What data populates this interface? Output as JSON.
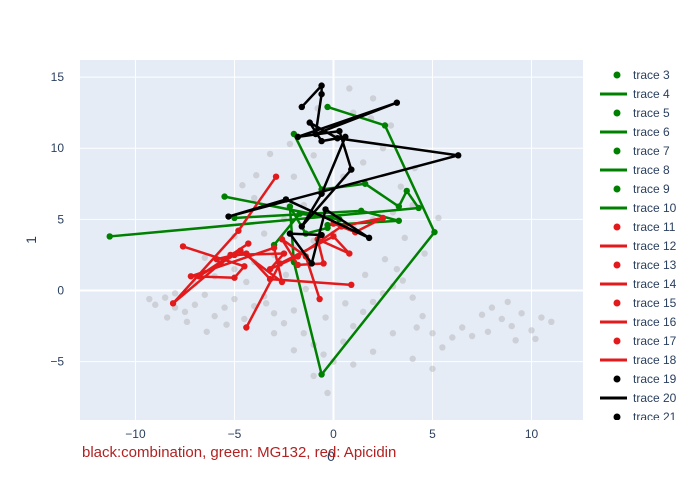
{
  "chart_data": {
    "type": "scatter",
    "xlabel": "0",
    "ylabel": "1",
    "xlim": [
      -12.8,
      12.6
    ],
    "ylim": [
      -9.1,
      16.2
    ],
    "xticks": [
      -10,
      -5,
      0,
      5,
      10
    ],
    "yticks": [
      -5,
      0,
      5,
      10,
      15
    ],
    "xtick_labels": [
      "−10",
      "−5",
      "0",
      "5",
      "10"
    ],
    "ytick_labels": [
      "−5",
      "0",
      "5",
      "10",
      "15"
    ],
    "grid": true,
    "legend_position": "right",
    "annotation": "black:combination, green: MG132, red: Apicidin",
    "colors": {
      "green": "#008000",
      "red": "#e31a1c",
      "black": "#000000",
      "background_points": "#b0b0b0",
      "plot_bg": "#e5ecf6"
    },
    "background_points": [
      [
        -9,
        -1
      ],
      [
        -8.5,
        -0.5
      ],
      [
        -8,
        -1.2
      ],
      [
        -7.5,
        -1.5
      ],
      [
        -7,
        -1
      ],
      [
        -6.5,
        -0.3
      ],
      [
        -6,
        -1.8
      ],
      [
        -5.5,
        -1.2
      ],
      [
        -5,
        -0.6
      ],
      [
        -4.5,
        -2
      ],
      [
        -4,
        -1.1
      ],
      [
        -3.5,
        -0.4
      ],
      [
        -3,
        -1.6
      ],
      [
        -2.5,
        -2.3
      ],
      [
        -2,
        -1.4
      ],
      [
        -1.5,
        -3
      ],
      [
        -1,
        -3.8
      ],
      [
        -0.5,
        -4.5
      ],
      [
        0,
        -5
      ],
      [
        0.5,
        -3.6
      ],
      [
        1,
        -2.5
      ],
      [
        1.5,
        -1.5
      ],
      [
        2,
        -0.8
      ],
      [
        2.5,
        -0.2
      ],
      [
        3,
        0.3
      ],
      [
        3.5,
        0.7
      ],
      [
        4,
        -0.5
      ],
      [
        4.5,
        -1.8
      ],
      [
        5,
        -3
      ],
      [
        5.5,
        -4
      ],
      [
        6,
        -3.3
      ],
      [
        6.5,
        -2.6
      ],
      [
        7,
        -3.2
      ],
      [
        7.5,
        -1.7
      ],
      [
        8,
        -1.2
      ],
      [
        8.5,
        -2
      ],
      [
        9,
        -2.5
      ],
      [
        9.5,
        -1.6
      ],
      [
        10,
        -2.8
      ],
      [
        10.5,
        -1.9
      ],
      [
        11,
        -2.2
      ],
      [
        9.2,
        -3.5
      ],
      [
        8.8,
        -0.8
      ],
      [
        10.2,
        -3.4
      ],
      [
        7.8,
        -2.9
      ],
      [
        -6,
        1
      ],
      [
        -5,
        1.5
      ],
      [
        -4,
        2
      ],
      [
        -3,
        2.5
      ],
      [
        -2,
        3
      ],
      [
        -1,
        3.5
      ],
      [
        0,
        4
      ],
      [
        1,
        4.5
      ],
      [
        2,
        5
      ],
      [
        3,
        5.5
      ],
      [
        4,
        6
      ],
      [
        -3.5,
        4
      ],
      [
        -2.5,
        5
      ],
      [
        -1.5,
        6
      ],
      [
        -0.5,
        7
      ],
      [
        0.5,
        8
      ],
      [
        1.5,
        9
      ],
      [
        2.5,
        10
      ],
      [
        -2,
        8
      ],
      [
        -1,
        9.5
      ],
      [
        0,
        11
      ],
      [
        1,
        12.5
      ],
      [
        2,
        13.5
      ],
      [
        0.8,
        14.2
      ],
      [
        -4,
        6.5
      ],
      [
        -5,
        3.8
      ],
      [
        -6.5,
        2.3
      ],
      [
        -7,
        0.5
      ],
      [
        -8,
        -0.2
      ],
      [
        -3,
        -3
      ],
      [
        -2,
        -4.2
      ],
      [
        -1,
        -6
      ],
      [
        -0.3,
        -7.2
      ],
      [
        1,
        -5.2
      ],
      [
        2,
        -4.3
      ],
      [
        3,
        -3
      ],
      [
        4,
        -4.8
      ],
      [
        5,
        -5.5
      ],
      [
        4.2,
        -2.6
      ],
      [
        3.2,
        1.5
      ],
      [
        4.6,
        2.6
      ],
      [
        3.6,
        3.7
      ],
      [
        2.6,
        2.2
      ],
      [
        1.6,
        1.1
      ],
      [
        0.6,
        -0.9
      ],
      [
        -0.4,
        -1.9
      ],
      [
        -1.4,
        0.1
      ],
      [
        -2.4,
        1.1
      ],
      [
        -3.4,
        -0.9
      ],
      [
        -4.4,
        0.6
      ],
      [
        -5.4,
        -2.4
      ],
      [
        -6.4,
        -2.9
      ],
      [
        -7.4,
        -2.2
      ],
      [
        -8.4,
        -1.9
      ],
      [
        -9.3,
        -0.6
      ],
      [
        3.4,
        7.3
      ],
      [
        4.1,
        8.6
      ],
      [
        2.9,
        11.6
      ],
      [
        1.9,
        12.1
      ],
      [
        -0.8,
        12.8
      ],
      [
        -3.2,
        9.6
      ],
      [
        -3.9,
        8.1
      ],
      [
        -4.6,
        7.4
      ],
      [
        -2.2,
        10.3
      ],
      [
        5.3,
        5.1
      ]
    ],
    "series": [
      {
        "name": "trace 3",
        "mode": "markers",
        "color": "#008000",
        "x": [],
        "y": []
      },
      {
        "name": "trace 4",
        "mode": "lines",
        "color": "#008000",
        "x": [
          -5.5,
          0.3,
          -1.7,
          -3.0
        ],
        "y": [
          6.6,
          5.0,
          5.4,
          3.2
        ]
      },
      {
        "name": "trace 5",
        "mode": "markers",
        "color": "#008000",
        "x": [],
        "y": []
      },
      {
        "name": "trace 6",
        "mode": "lines",
        "color": "#008000",
        "x": [
          -2.0,
          -0.6,
          1.6,
          3.3,
          3.7,
          4.3,
          -11.3
        ],
        "y": [
          11.0,
          7.1,
          7.5,
          5.9,
          7.0,
          5.8,
          3.8
        ]
      },
      {
        "name": "trace 7",
        "mode": "markers",
        "color": "#008000",
        "x": [],
        "y": []
      },
      {
        "name": "trace 8",
        "mode": "lines",
        "color": "#008000",
        "x": [
          -0.3,
          2.6,
          5.1,
          -0.6,
          -2.0,
          -2.2,
          -1.4,
          -0.3
        ],
        "y": [
          12.9,
          11.6,
          4.1,
          -5.9,
          2.0,
          5.9,
          4.0,
          4.4
        ]
      },
      {
        "name": "trace 9",
        "mode": "markers",
        "color": "#008000",
        "x": [],
        "y": []
      },
      {
        "name": "trace 10",
        "mode": "lines",
        "color": "#008000",
        "x": [
          -5.0,
          1.4,
          3.3,
          -0.3
        ],
        "y": [
          5.1,
          5.6,
          4.9,
          4.6
        ]
      },
      {
        "name": "trace 11",
        "mode": "markers",
        "color": "#e31a1c",
        "x": [],
        "y": []
      },
      {
        "name": "trace 12",
        "mode": "lines",
        "color": "#e31a1c",
        "x": [
          -4.3,
          -6.8,
          -4.7,
          -2.6,
          -3.0,
          -7.2,
          -5.0,
          -4.5,
          -7.6
        ],
        "y": [
          3.3,
          1.0,
          2.8,
          0.6,
          3.0,
          1.0,
          0.9,
          1.7,
          3.1
        ]
      },
      {
        "name": "trace 13",
        "mode": "markers",
        "color": "#e31a1c",
        "x": [],
        "y": []
      },
      {
        "name": "trace 14",
        "mode": "lines",
        "color": "#e31a1c",
        "x": [
          -2.9,
          -4.8,
          -8.1,
          -5.7,
          -5.0,
          -5.9,
          -4.4,
          -3.2,
          0.9
        ],
        "y": [
          8.0,
          4.2,
          -0.9,
          1.9,
          2.5,
          2.2,
          2.6,
          0.8,
          0.4
        ]
      },
      {
        "name": "trace 15",
        "mode": "markers",
        "color": "#e31a1c",
        "x": [],
        "y": []
      },
      {
        "name": "trace 16",
        "mode": "lines",
        "color": "#e31a1c",
        "x": [
          -4.4,
          -2.7,
          0.0,
          0.8,
          -0.8,
          -0.5,
          -1.8,
          -2.6,
          -1.4,
          -0.7
        ],
        "y": [
          -2.6,
          1.9,
          3.8,
          2.6,
          3.6,
          1.9,
          1.8,
          3.6,
          2.4,
          -0.6
        ]
      },
      {
        "name": "trace 17",
        "mode": "markers",
        "color": "#e31a1c",
        "x": [],
        "y": []
      },
      {
        "name": "trace 18",
        "mode": "lines",
        "color": "#e31a1c",
        "x": [
          0.0,
          1.1,
          1.1,
          2.5,
          0.4,
          -1.8,
          -3.2,
          -2.5,
          -5.2
        ],
        "y": [
          4.7,
          4.1,
          4.1,
          5.1,
          4.5,
          2.4,
          1.5,
          2.6,
          2.5
        ]
      },
      {
        "name": "trace 19",
        "mode": "markers",
        "color": "#000000",
        "x": [],
        "y": []
      },
      {
        "name": "trace 20",
        "mode": "lines",
        "color": "#000000",
        "x": [
          -1.6,
          -0.6,
          -0.6,
          -0.9,
          3.2,
          -1.8,
          0.3,
          0.9,
          -1.6,
          -0.6,
          0.6,
          -0.6,
          -1.2,
          0.2,
          6.3,
          -5.3,
          -2.4,
          1.8,
          -0.4,
          -1.1,
          -2.2,
          -0.6
        ],
        "y": [
          12.9,
          14.4,
          13.8,
          11.0,
          13.2,
          10.8,
          11.2,
          8.5,
          4.5,
          6.8,
          10.8,
          10.5,
          11.8,
          10.7,
          9.5,
          5.2,
          6.4,
          3.7,
          5.7,
          1.9,
          4.0,
          3.9
        ]
      },
      {
        "name": "trace 21",
        "mode": "markers",
        "color": "#000000",
        "x": [],
        "y": []
      }
    ]
  }
}
